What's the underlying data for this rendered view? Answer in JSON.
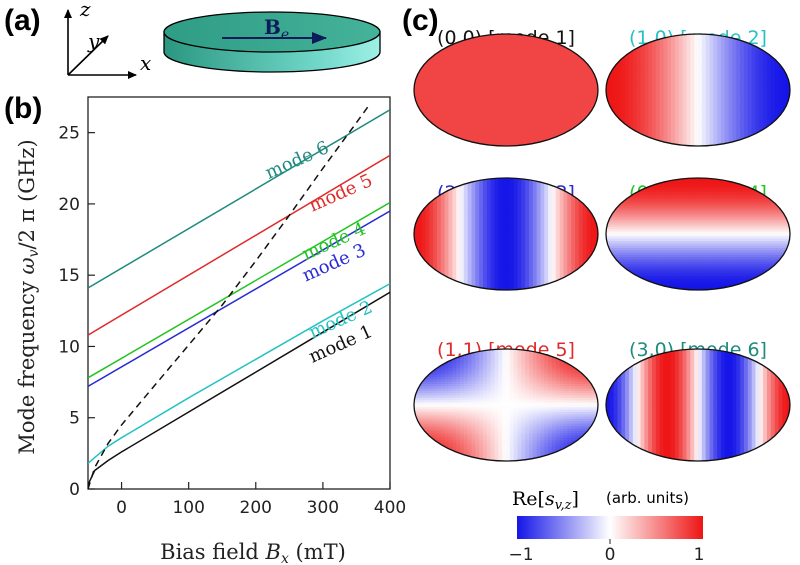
{
  "panels": {
    "a": "(a)",
    "b": "(b)",
    "c": "(c)"
  },
  "panel_a": {
    "axis_x": "x",
    "axis_y": "y",
    "axis_z": "z",
    "field_main": "B",
    "field_sub": "e",
    "disk_color": "#3aa890"
  },
  "chart_data": {
    "type": "line",
    "xlabel_main": "Bias field ",
    "xlabel_var": "B",
    "xlabel_sub": "x",
    "xlabel_unit": " (mT)",
    "ylabel_main": "Mode frequency ",
    "ylabel_var": "ω",
    "ylabel_sub": "v",
    "ylabel_unit": "/2 π (GHz)",
    "xlim": [
      -50,
      400
    ],
    "ylim": [
      0,
      27.5
    ],
    "x_ticks": [
      0,
      100,
      200,
      300,
      400
    ],
    "y_ticks": [
      0,
      5,
      10,
      15,
      20,
      25
    ],
    "grid": false,
    "series": [
      {
        "name": "mode 1",
        "color": "#111111",
        "dashed": false,
        "x": [
          -50,
          -40,
          -20,
          0,
          100,
          200,
          300,
          400
        ],
        "y": [
          0.3,
          1.3,
          2.0,
          2.6,
          5.4,
          8.2,
          11.0,
          13.8
        ]
      },
      {
        "name": "mode 2",
        "color": "#26c2c2",
        "dashed": false,
        "x": [
          -50,
          -40,
          -20,
          0,
          100,
          200,
          300,
          400
        ],
        "y": [
          1.8,
          2.2,
          3.0,
          3.6,
          6.4,
          9.1,
          11.8,
          14.4
        ]
      },
      {
        "name": "mode 3",
        "color": "#2a2ad6",
        "dashed": false,
        "x": [
          -50,
          400
        ],
        "y": [
          7.2,
          19.5
        ]
      },
      {
        "name": "mode 4",
        "color": "#22c422",
        "dashed": false,
        "x": [
          -50,
          400
        ],
        "y": [
          7.8,
          20.1
        ]
      },
      {
        "name": "mode 5",
        "color": "#e02a2a",
        "dashed": false,
        "x": [
          -50,
          400
        ],
        "y": [
          10.8,
          23.4
        ]
      },
      {
        "name": "mode 6",
        "color": "#1f8a7e",
        "dashed": false,
        "x": [
          -50,
          400
        ],
        "y": [
          14.1,
          26.6
        ]
      },
      {
        "name": "",
        "color": "#111111",
        "dashed": true,
        "x": [
          -50,
          -40,
          -20,
          0,
          50,
          100,
          150,
          200,
          250,
          300,
          350,
          370
        ],
        "y": [
          0.0,
          1.5,
          3.2,
          4.5,
          7.3,
          10.1,
          12.9,
          16.0,
          19.2,
          22.5,
          25.7,
          27.0
        ]
      }
    ],
    "labels": [
      {
        "text": "mode 6",
        "color": "#1f8a7e",
        "x": 265,
        "y": 22.7,
        "angle": -24
      },
      {
        "text": "mode 5",
        "color": "#e02a2a",
        "x": 330,
        "y": 20.4,
        "angle": -24
      },
      {
        "text": "mode 4",
        "color": "#22c422",
        "x": 320,
        "y": 17.0,
        "angle": -24
      },
      {
        "text": "mode 3",
        "color": "#2a2ad6",
        "x": 320,
        "y": 15.5,
        "angle": -24
      },
      {
        "text": "mode 2",
        "color": "#26c2c2",
        "x": 330,
        "y": 11.5,
        "angle": -24
      },
      {
        "text": "mode 1",
        "color": "#111111",
        "x": 330,
        "y": 9.8,
        "angle": -24
      }
    ]
  },
  "mode_maps": [
    {
      "title": "(0,0) [mode 1]",
      "color": "#111111",
      "m": 0,
      "n": 0
    },
    {
      "title": "(1,0) [mode 2]",
      "color": "#26c2c2",
      "m": 1,
      "n": 0
    },
    {
      "title": "(2,0) [mode 3]",
      "color": "#2a2ad6",
      "m": 2,
      "n": 0
    },
    {
      "title": "(0,1) [mode 4]",
      "color": "#22c422",
      "m": 0,
      "n": 1
    },
    {
      "title": "(1,1) [mode 5]",
      "color": "#e02a2a",
      "m": 1,
      "n": 1
    },
    {
      "title": "(3,0) [mode 6]",
      "color": "#1f8a7e",
      "m": 3,
      "n": 0
    }
  ],
  "colorbar": {
    "label_main": "Re[",
    "label_var": "s",
    "label_sub": "v,z",
    "label_end": "]",
    "units": "(arb. units)",
    "ticks": [
      "−1",
      "0",
      "1"
    ],
    "colors": [
      "#1515e8",
      "#ffffff",
      "#ee1515"
    ]
  }
}
